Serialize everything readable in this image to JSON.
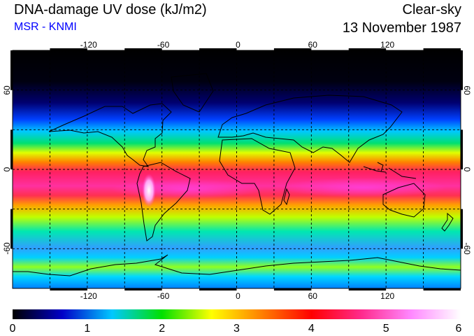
{
  "header": {
    "title": "DNA-damage UV dose (kJ/m2)",
    "source": "MSR - KNMI",
    "condition": "Clear-sky",
    "date": "13 November 1987"
  },
  "map": {
    "longitude_ticks": [
      "-120",
      "-60",
      "0",
      "60",
      "120"
    ],
    "latitude_ticks": [
      "60",
      "0",
      "-60"
    ],
    "grid_longitudes": [
      -150,
      -120,
      -90,
      -60,
      -30,
      0,
      30,
      60,
      90,
      120,
      150
    ],
    "grid_latitudes": [
      60,
      30,
      0,
      -30,
      -60
    ],
    "lon_range": [
      -180,
      180
    ],
    "lat_range": [
      -90,
      90
    ]
  },
  "colorbar": {
    "ticks": [
      "0",
      "1",
      "2",
      "3",
      "4",
      "5",
      "6"
    ],
    "range": [
      0,
      6
    ],
    "colors": [
      "#000000",
      "#0000c8",
      "#00c8ff",
      "#00e000",
      "#ffff00",
      "#ff8000",
      "#ff0000",
      "#ff2a8c",
      "#ff88ff",
      "#ffffff"
    ]
  }
}
